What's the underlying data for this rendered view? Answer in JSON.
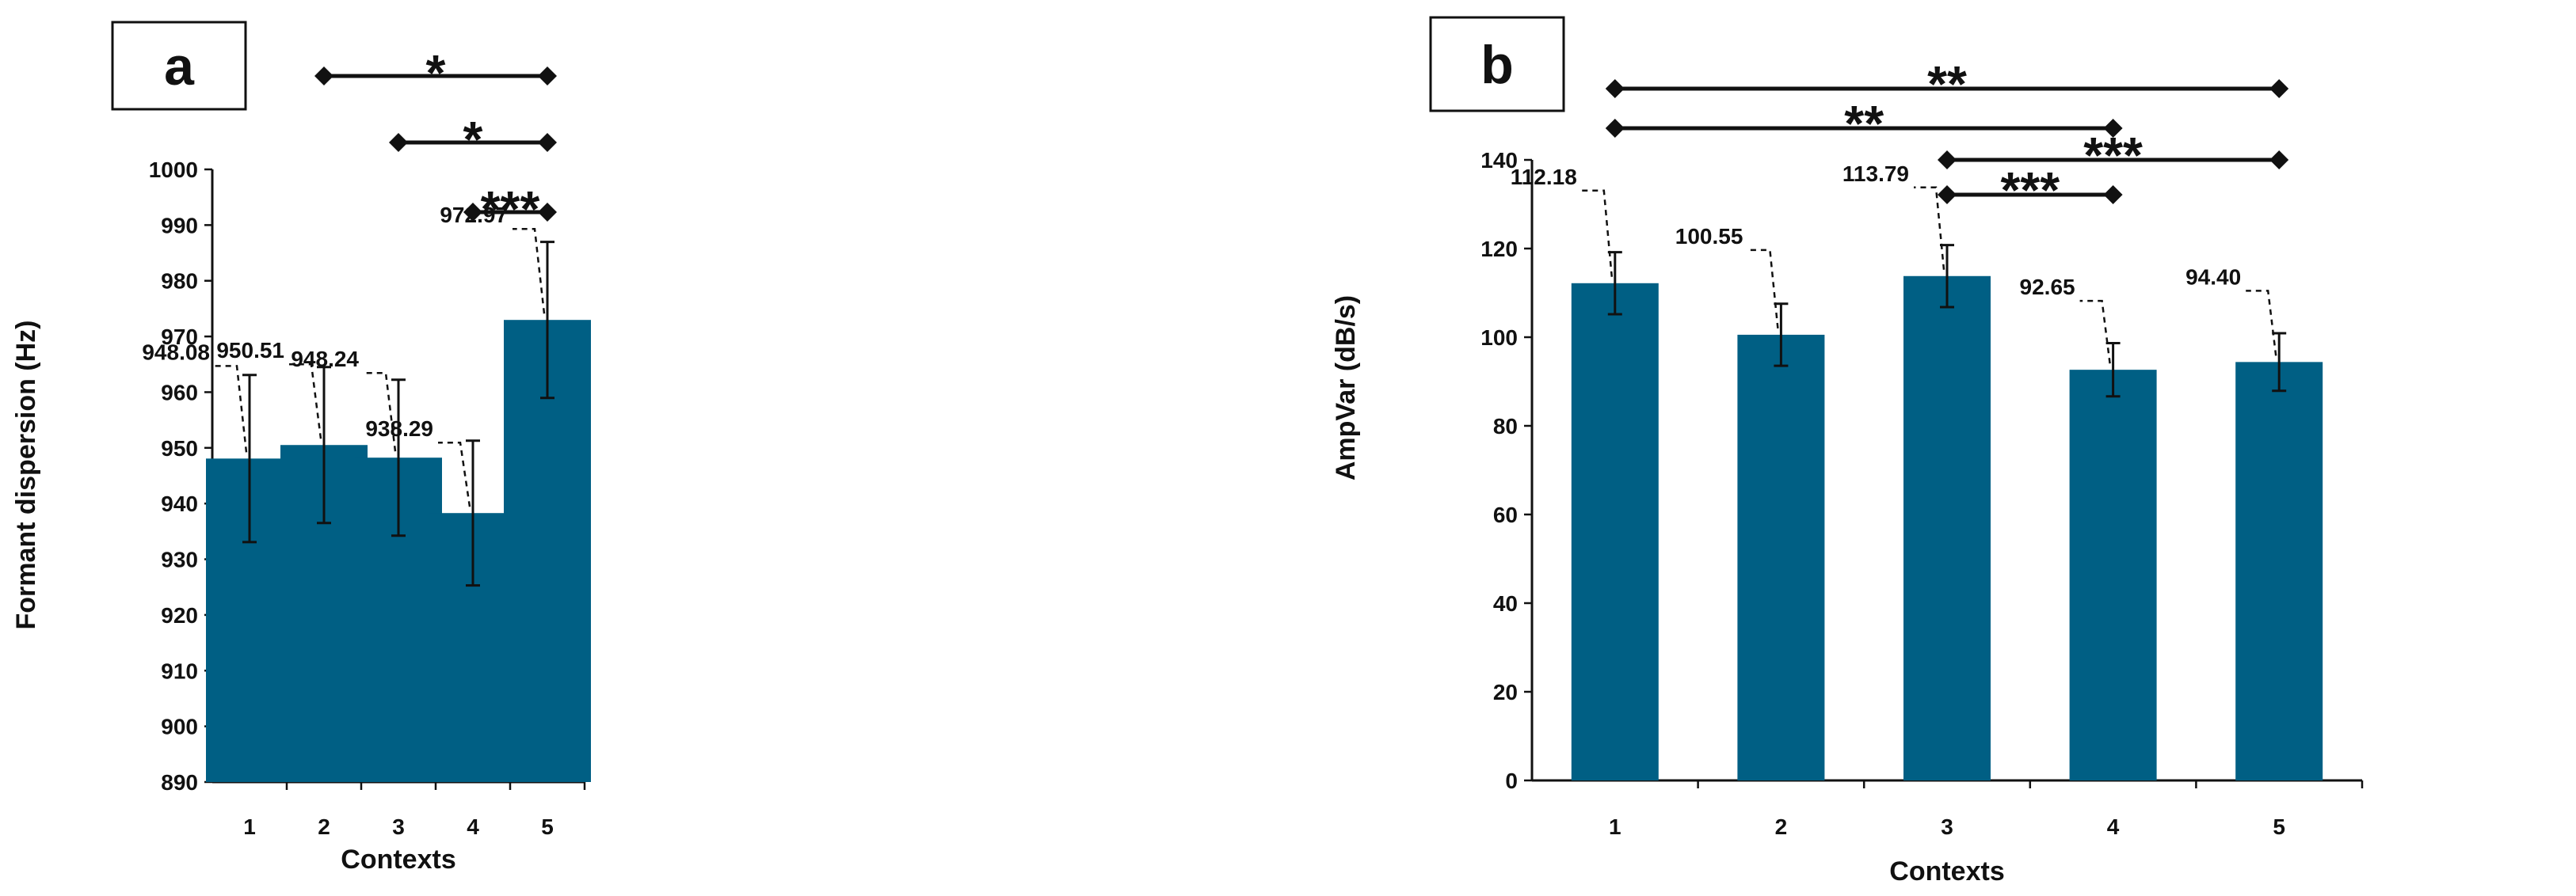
{
  "chart_data": [
    {
      "panel": "a",
      "type": "bar",
      "categories": [
        "1",
        "2",
        "3",
        "4",
        "5"
      ],
      "values": [
        948.08,
        950.51,
        948.24,
        938.29,
        972.97
      ],
      "error": [
        15,
        14,
        14,
        13,
        14
      ],
      "data_labels": [
        "948.08",
        "950.51",
        "948.24",
        "938.29",
        "972.97"
      ],
      "xlabel": "Contexts",
      "ylabel": "Formant dispersion (Hz)",
      "ylim": [
        890,
        1000
      ],
      "yticks": [
        "890",
        "900",
        "910",
        "920",
        "930",
        "940",
        "950",
        "960",
        "970",
        "980",
        "990",
        "1000"
      ],
      "bar_color": "#005f84",
      "significance": [
        {
          "from": "2",
          "to": "5",
          "label": "*"
        },
        {
          "from": "3",
          "to": "5",
          "label": "*"
        },
        {
          "from": "4",
          "to": "5",
          "label": "***"
        }
      ]
    },
    {
      "panel": "b",
      "type": "bar",
      "categories": [
        "1",
        "2",
        "3",
        "4",
        "5"
      ],
      "values": [
        112.18,
        100.55,
        113.79,
        92.65,
        94.4
      ],
      "error": [
        7,
        7,
        7,
        6,
        6.5
      ],
      "data_labels": [
        "112.18",
        "100.55",
        "113.79",
        "92.65",
        "94.40"
      ],
      "xlabel": "Contexts",
      "ylabel": "AmpVar (dB/s)",
      "ylim": [
        0,
        140
      ],
      "yticks": [
        "0",
        "20",
        "40",
        "60",
        "80",
        "100",
        "120",
        "140"
      ],
      "bar_color": "#005f84",
      "significance": [
        {
          "from": "1",
          "to": "5",
          "label": "**"
        },
        {
          "from": "1",
          "to": "4",
          "label": "**"
        },
        {
          "from": "3",
          "to": "5",
          "label": "***"
        },
        {
          "from": "3",
          "to": "4",
          "label": "***"
        }
      ]
    }
  ]
}
